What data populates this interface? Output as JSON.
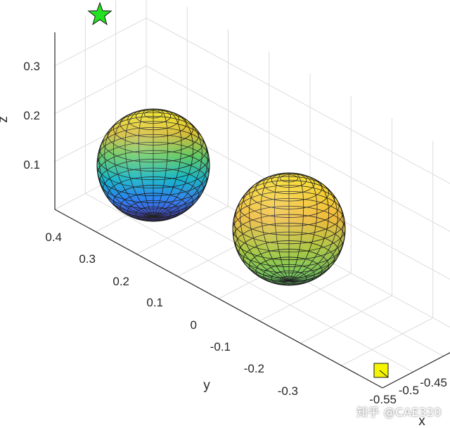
{
  "chart_data": {
    "type": "surface3d",
    "title": "",
    "xlabel": "x",
    "ylabel": "y",
    "zlabel": "z",
    "x_ticks": [
      "-0.55",
      "-0.5",
      "-0.45"
    ],
    "y_ticks": [
      "0.4",
      "0.3",
      "0.2",
      "0.1",
      "0",
      "-0.1",
      "-0.2",
      "-0.3"
    ],
    "z_ticks": [
      "0.1",
      "0.2",
      "0.3"
    ],
    "grid": true,
    "colormap": "parula",
    "objects": [
      {
        "shape": "sphere",
        "center": {
          "x": -0.5,
          "y": 0.25,
          "z": 0.15
        },
        "radius": 0.1
      },
      {
        "shape": "sphere",
        "center": {
          "x": -0.5,
          "y": -0.1,
          "z": 0.15
        },
        "radius": 0.1
      }
    ],
    "markers": [
      {
        "shape": "star",
        "color": "#22e022",
        "position": "top of z-axis, y = 0.4"
      },
      {
        "shape": "square",
        "color": "#f5f500",
        "position": "near x-axis, y = -0.3"
      }
    ]
  },
  "watermark": "知乎 @CAE320"
}
